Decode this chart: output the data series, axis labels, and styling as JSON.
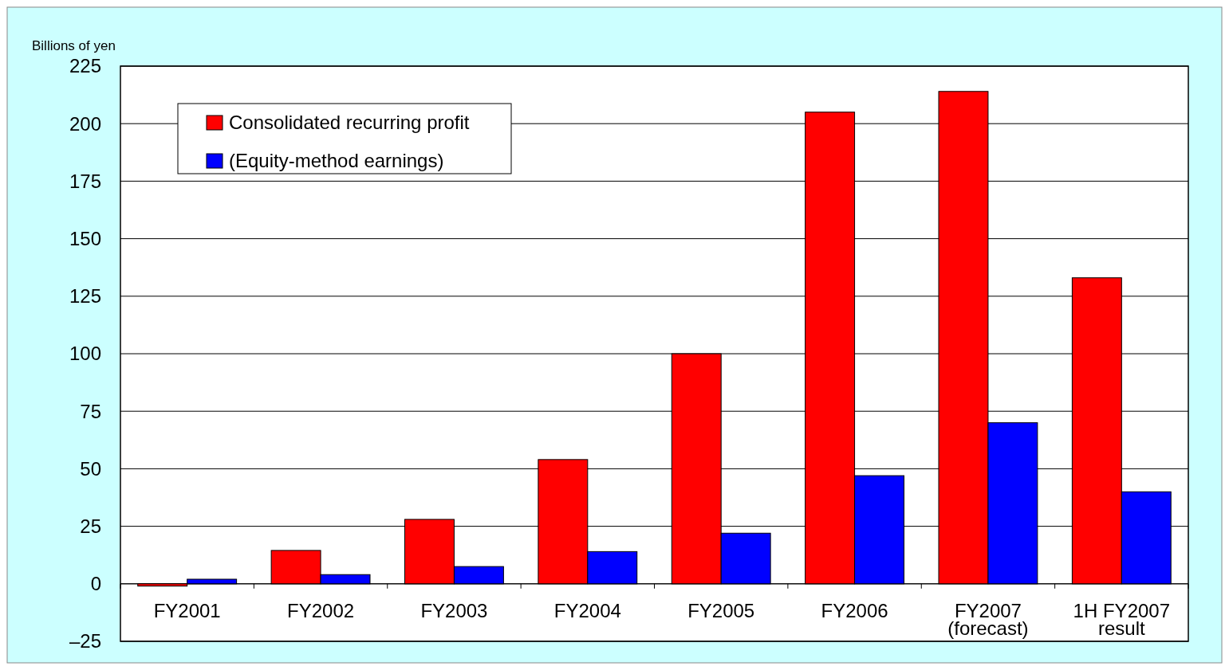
{
  "chart_data": {
    "type": "bar",
    "ylabel": "Billions of yen",
    "categories": [
      "FY2001",
      "FY2002",
      "FY2003",
      "FY2004",
      "FY2005",
      "FY2006",
      "FY2007\n(forecast)",
      "1H FY2007\nresult"
    ],
    "series": [
      {
        "name": "Consolidated recurring profit",
        "color": "#ff0000",
        "values": [
          -1,
          14.5,
          28,
          54,
          100,
          205,
          214,
          133
        ]
      },
      {
        "name": "(Equity-method earnings)",
        "color": "#0000ff",
        "values": [
          2,
          4,
          7.5,
          14,
          22,
          47,
          70,
          40
        ]
      }
    ],
    "ylim": [
      -25,
      225
    ],
    "yticks": [
      {
        "value": -25,
        "label": "–25"
      },
      0,
      25,
      50,
      75,
      100,
      125,
      150,
      175,
      200,
      225
    ],
    "grid": "y",
    "legend": "top left"
  }
}
